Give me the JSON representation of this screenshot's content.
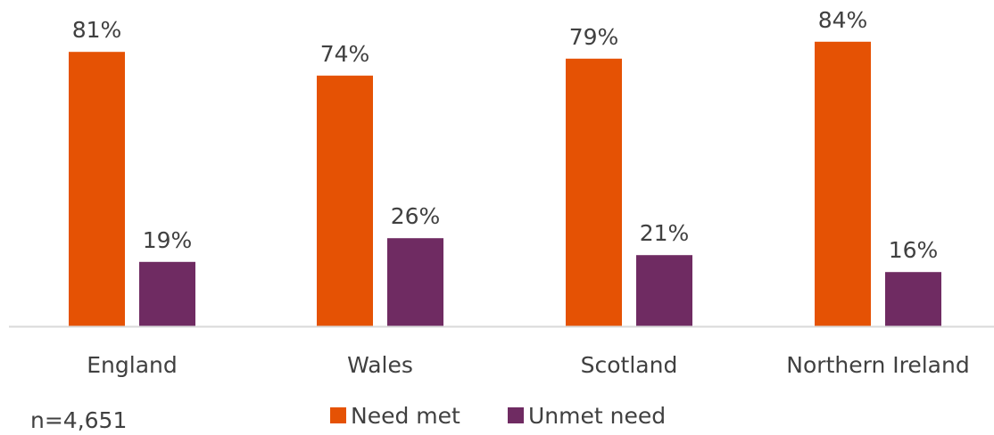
{
  "chart_data": {
    "type": "bar",
    "categories": [
      "England",
      "Wales",
      "Scotland",
      "Northern Ireland"
    ],
    "series": [
      {
        "name": "Need met",
        "values": [
          81,
          74,
          79,
          84
        ],
        "color": "#E55204",
        "labels": [
          "81%",
          "74%",
          "79%",
          "84%"
        ]
      },
      {
        "name": "Unmet need",
        "values": [
          19,
          26,
          21,
          16
        ],
        "color": "#6F2B62",
        "labels": [
          "19%",
          "26%",
          "21%",
          "16%"
        ]
      }
    ],
    "value_suffix": "%",
    "ylim": [
      0,
      100
    ],
    "grid": false,
    "y_axis_visible": false,
    "legend_position": "bottom",
    "axis_color": "#D9D9D9",
    "text_color": "#404040"
  },
  "note": "n=4,651"
}
